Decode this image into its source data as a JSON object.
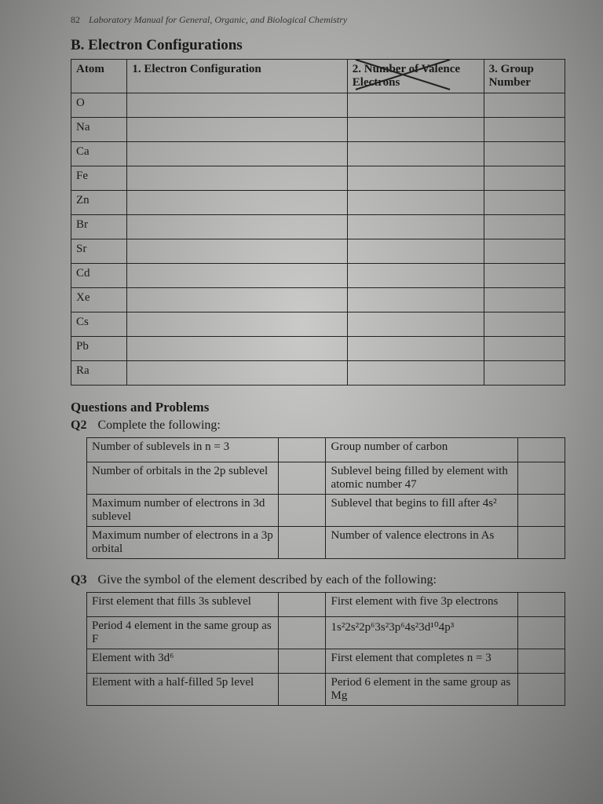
{
  "running_head": {
    "page_number": "82",
    "title": "Laboratory Manual for General, Organic, and Biological Chemistry"
  },
  "sectionB": {
    "title": "B.  Electron Configurations",
    "table": {
      "columns": [
        "Atom",
        "1. Electron Configuration",
        "2. Number of Valence Electrons",
        "3. Group Number"
      ],
      "atoms": [
        "O",
        "Na",
        "Ca",
        "Fe",
        "Zn",
        "Br",
        "Sr",
        "Cd",
        "Xe",
        "Cs",
        "Pb",
        "Ra"
      ]
    }
  },
  "questions_heading": "Questions and Problems",
  "q2": {
    "prompt": "Complete the following:",
    "qnum": "Q2",
    "left_labels": [
      "Number of sublevels in n = 3",
      "Number of orbitals in the 2p sublevel",
      "Maximum number of electrons in 3d sublevel",
      "Maximum number of electrons in a 3p orbital"
    ],
    "right_labels": [
      "Group number of carbon",
      "Sublevel being filled by element with atomic number 47",
      "Sublevel that begins to fill after 4s²",
      "Number of valence electrons in As"
    ]
  },
  "q3": {
    "prompt": "Give the symbol of the element described by each of the following:",
    "qnum": "Q3",
    "left_labels": [
      "First element that fills 3s sublevel",
      "Period 4 element in the same group as F",
      "Element with 3d⁶",
      "Element with a half-filled 5p level"
    ],
    "right_labels": [
      "First element with five 3p electrons",
      "1s²2s²2p⁶3s²3p⁶4s²3d¹⁰4p³",
      "First element that completes n = 3",
      "Period 6 element in the same group as Mg"
    ]
  },
  "style": {
    "border_color": "#222222",
    "text_color": "#1a1a1a"
  }
}
